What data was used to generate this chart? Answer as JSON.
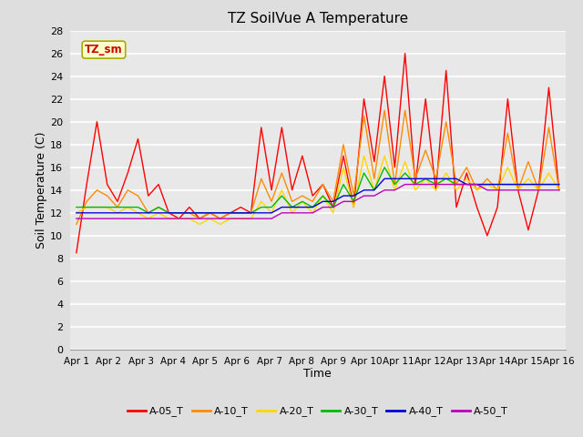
{
  "title": "TZ SoilVue A Temperature",
  "xlabel": "Time",
  "ylabel": "Soil Temperature (C)",
  "annotation": "TZ_sm",
  "ylim": [
    0,
    28
  ],
  "yticks": [
    0,
    2,
    4,
    6,
    8,
    10,
    12,
    14,
    16,
    18,
    20,
    22,
    24,
    26,
    28
  ],
  "x_labels": [
    "Apr 1",
    "Apr 2",
    "Apr 3",
    "Apr 4",
    "Apr 5",
    "Apr 6",
    "Apr 7",
    "Apr 8",
    "Apr 9",
    "Apr 10",
    "Apr 11",
    "Apr 12",
    "Apr 13",
    "Apr 14",
    "Apr 15",
    "Apr 16"
  ],
  "series": {
    "A-05_T": {
      "color": "#FF0000",
      "values": [
        8.5,
        14.5,
        20.0,
        14.5,
        13.0,
        15.5,
        18.5,
        13.5,
        14.5,
        12.0,
        11.5,
        12.5,
        11.5,
        12.0,
        11.5,
        12.0,
        12.5,
        12.0,
        19.5,
        14.0,
        19.5,
        14.0,
        17.0,
        13.5,
        14.5,
        12.5,
        17.0,
        12.5,
        22.0,
        16.5,
        24.0,
        16.0,
        26.0,
        14.5,
        22.0,
        14.0,
        24.5,
        12.5,
        15.5,
        12.5,
        10.0,
        12.5,
        22.0,
        14.0,
        10.5,
        14.0,
        23.0,
        14.0
      ]
    },
    "A-10_T": {
      "color": "#FF8C00",
      "values": [
        11.0,
        13.0,
        14.0,
        13.5,
        12.5,
        14.0,
        13.5,
        12.0,
        12.5,
        12.0,
        12.0,
        12.0,
        11.5,
        12.0,
        11.5,
        12.0,
        12.0,
        12.0,
        15.0,
        13.0,
        15.5,
        13.0,
        13.5,
        13.0,
        14.5,
        13.0,
        18.0,
        13.5,
        20.5,
        15.0,
        21.0,
        14.5,
        21.0,
        15.0,
        17.5,
        15.0,
        20.0,
        14.5,
        16.0,
        14.0,
        15.0,
        14.0,
        19.0,
        14.0,
        16.5,
        14.0,
        19.5,
        14.0
      ]
    },
    "A-20_T": {
      "color": "#FFD700",
      "values": [
        12.0,
        12.5,
        12.5,
        12.5,
        12.0,
        12.5,
        12.0,
        11.5,
        12.0,
        11.5,
        11.5,
        11.5,
        11.0,
        11.5,
        11.0,
        11.5,
        11.5,
        11.5,
        13.0,
        12.0,
        14.0,
        12.0,
        13.0,
        12.0,
        13.5,
        12.0,
        16.0,
        12.5,
        17.0,
        14.0,
        17.0,
        14.0,
        16.5,
        14.0,
        15.0,
        14.0,
        15.5,
        14.0,
        15.0,
        14.0,
        14.5,
        14.0,
        16.0,
        14.0,
        15.0,
        14.0,
        15.5,
        14.0
      ]
    },
    "A-30_T": {
      "color": "#00BB00",
      "values": [
        12.5,
        12.5,
        12.5,
        12.5,
        12.5,
        12.5,
        12.5,
        12.0,
        12.5,
        12.0,
        12.0,
        12.0,
        12.0,
        12.0,
        12.0,
        12.0,
        12.0,
        12.0,
        12.5,
        12.5,
        13.5,
        12.5,
        13.0,
        12.5,
        13.5,
        12.5,
        14.5,
        13.0,
        15.5,
        14.0,
        16.0,
        14.5,
        15.5,
        14.5,
        15.0,
        14.5,
        15.0,
        14.5,
        14.5,
        14.5,
        14.5,
        14.5,
        14.5,
        14.5,
        14.5,
        14.5,
        14.5,
        14.5
      ]
    },
    "A-40_T": {
      "color": "#0000DD",
      "values": [
        12.0,
        12.0,
        12.0,
        12.0,
        12.0,
        12.0,
        12.0,
        12.0,
        12.0,
        12.0,
        12.0,
        12.0,
        12.0,
        12.0,
        12.0,
        12.0,
        12.0,
        12.0,
        12.0,
        12.0,
        12.5,
        12.5,
        12.5,
        12.5,
        13.0,
        13.0,
        13.5,
        13.5,
        14.0,
        14.0,
        15.0,
        15.0,
        15.0,
        15.0,
        15.0,
        15.0,
        15.0,
        15.0,
        14.5,
        14.5,
        14.5,
        14.5,
        14.5,
        14.5,
        14.5,
        14.5,
        14.5,
        14.5
      ]
    },
    "A-50_T": {
      "color": "#BB00BB",
      "values": [
        11.5,
        11.5,
        11.5,
        11.5,
        11.5,
        11.5,
        11.5,
        11.5,
        11.5,
        11.5,
        11.5,
        11.5,
        11.5,
        11.5,
        11.5,
        11.5,
        11.5,
        11.5,
        11.5,
        11.5,
        12.0,
        12.0,
        12.0,
        12.0,
        12.5,
        12.5,
        13.0,
        13.0,
        13.5,
        13.5,
        14.0,
        14.0,
        14.5,
        14.5,
        14.5,
        14.5,
        14.5,
        14.5,
        14.5,
        14.5,
        14.0,
        14.0,
        14.0,
        14.0,
        14.0,
        14.0,
        14.0,
        14.0
      ]
    }
  },
  "background_color": "#DEDEDE",
  "plot_bg_color": "#E8E8E8",
  "grid_color": "#FFFFFF",
  "annotation_bg": "#FFFFCC",
  "annotation_border": "#AAAA00",
  "annotation_text_color": "#CC0000",
  "figsize": [
    6.4,
    4.8
  ],
  "dpi": 100
}
